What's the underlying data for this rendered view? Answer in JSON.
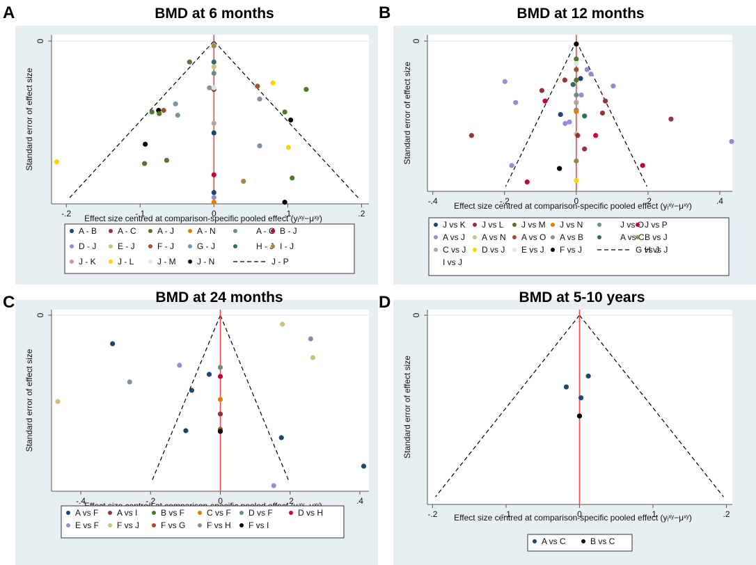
{
  "figure": {
    "x_axis_title": "Effect size centred at comparison-specific pooled effect (yᵢˣʸ−μˣʸ)",
    "y_axis_title": "Standard error of effect size"
  },
  "colors": {
    "panel_background": "#e8eff3",
    "plot_background": "#ffffff",
    "null_line": "#ee4b4b",
    "funnel_line": "#000000",
    "series_palette": {
      "navy": "#1a476f",
      "maroon": "#90353b",
      "green": "#55752f",
      "orange": "#e37e00",
      "teal_grey": "#6e8e84",
      "red": "#c10534",
      "lavender": "#938dd2",
      "khaki": "#cac27e",
      "rust": "#a0522d",
      "steel": "#7b92a8",
      "dark_teal": "#2d6d66",
      "olive": "#9c8847",
      "rose": "#bfa19c",
      "yellow": "#ffd200",
      "pale": "#d9e6eb",
      "black": "#000000"
    }
  },
  "chart_data": [
    {
      "id": "A",
      "type": "scatter",
      "panel_letter": "A",
      "title": "BMD at 6 months",
      "xlabel": "Effect size centred at comparison-specific pooled effect (yᵢˣʸ−μˣʸ)",
      "ylabel": "Standard error of effect size",
      "xlim": [
        -0.22,
        0.21
      ],
      "x_ticks": [
        -0.2,
        -0.1,
        0,
        0.1,
        0.2
      ],
      "x_tick_labels": [
        "-.2",
        "-.1",
        "0",
        ".1",
        ".2"
      ],
      "y_reversed": true,
      "ylim": [
        0,
        0.104
      ],
      "y_ticks": [
        0
      ],
      "y_tick_labels": [
        "0"
      ],
      "funnel": {
        "apex_se": 0,
        "base_se": 0.098,
        "half_width_at_base": 0.197
      },
      "legend_columns": 6,
      "legend": [
        {
          "label": "A - B",
          "color": "#1a476f",
          "marker": "dot"
        },
        {
          "label": "A - C",
          "color": "#90353b",
          "marker": "dot"
        },
        {
          "label": "A - J",
          "color": "#55752f",
          "marker": "dot"
        },
        {
          "label": "A - N",
          "color": "#e37e00",
          "marker": "dot"
        },
        {
          "label": "A - O",
          "color": "#6e8e84",
          "marker": "dot"
        },
        {
          "label": "B - J",
          "color": "#c10534",
          "marker": "dot"
        },
        {
          "label": "D - J",
          "color": "#938dd2",
          "marker": "dot"
        },
        {
          "label": "E - J",
          "color": "#cac27e",
          "marker": "dot"
        },
        {
          "label": "F - J",
          "color": "#a0522d",
          "marker": "dot"
        },
        {
          "label": "G - J",
          "color": "#7b92a8",
          "marker": "dot"
        },
        {
          "label": "H - J",
          "color": "#2d6d66",
          "marker": "dot"
        },
        {
          "label": "I - J",
          "color": "#9c8847",
          "marker": "dot"
        },
        {
          "label": "J - K",
          "color": "#bfa19c",
          "marker": "dot"
        },
        {
          "label": "J - L",
          "color": "#ffd200",
          "marker": "dot"
        },
        {
          "label": "J - M",
          "color": "#d9e6eb",
          "marker": "dot"
        },
        {
          "label": "J - N",
          "color": "#000000",
          "marker": "dot"
        },
        {
          "label": "J - P",
          "color": "#000000",
          "marker": "dash"
        }
      ],
      "points": [
        {
          "series": "I - J",
          "x": 0.0,
          "se": 0.003
        },
        {
          "series": "A - J",
          "x": -0.033,
          "se": 0.013
        },
        {
          "series": "H - J",
          "x": 0.0,
          "se": 0.013
        },
        {
          "series": "E - J",
          "x": 0.0,
          "se": 0.016
        },
        {
          "series": "A - O",
          "x": 0.0,
          "se": 0.02
        },
        {
          "series": "G - J",
          "x": -0.006,
          "se": 0.029
        },
        {
          "series": "A - C",
          "x": 0.0,
          "se": 0.03
        },
        {
          "series": "J - M",
          "x": 0.0,
          "se": 0.029
        },
        {
          "series": "F - J",
          "x": 0.059,
          "se": 0.028
        },
        {
          "series": "J - L",
          "x": 0.08,
          "se": 0.026
        },
        {
          "series": "A - J",
          "x": 0.125,
          "se": 0.03
        },
        {
          "series": "G - J",
          "x": 0.062,
          "se": 0.036
        },
        {
          "series": "G - J",
          "x": -0.052,
          "se": 0.039
        },
        {
          "series": "J - N",
          "x": -0.075,
          "se": 0.043
        },
        {
          "series": "F - J",
          "x": -0.068,
          "se": 0.043
        },
        {
          "series": "A - J",
          "x": -0.084,
          "se": 0.044
        },
        {
          "series": "A - J",
          "x": -0.074,
          "se": 0.045
        },
        {
          "series": "G - J",
          "x": -0.049,
          "se": 0.046
        },
        {
          "series": "A - J",
          "x": 0.096,
          "se": 0.044
        },
        {
          "series": "J - N",
          "x": 0.104,
          "se": 0.049
        },
        {
          "series": "J - K",
          "x": 0.0,
          "se": 0.051
        },
        {
          "series": "A - B",
          "x": 0.0,
          "se": 0.057
        },
        {
          "series": "J - N",
          "x": -0.093,
          "se": 0.064
        },
        {
          "series": "G - J",
          "x": 0.062,
          "se": 0.065
        },
        {
          "series": "J - L",
          "x": 0.101,
          "se": 0.066
        },
        {
          "series": "J - L",
          "x": -0.213,
          "se": 0.075
        },
        {
          "series": "A - J",
          "x": -0.094,
          "se": 0.076
        },
        {
          "series": "A - J",
          "x": -0.064,
          "se": 0.074
        },
        {
          "series": "B - J",
          "x": 0.0,
          "se": 0.083
        },
        {
          "series": "I - J",
          "x": 0.04,
          "se": 0.087
        },
        {
          "series": "A - J",
          "x": 0.106,
          "se": 0.085
        },
        {
          "series": "A - B",
          "x": 0.0,
          "se": 0.094
        },
        {
          "series": "D - J",
          "x": 0.0,
          "se": 0.097
        },
        {
          "series": "A - N",
          "x": 0.0,
          "se": 0.1
        },
        {
          "series": "J - N",
          "x": 0.096,
          "se": 0.1
        }
      ]
    },
    {
      "id": "B",
      "type": "scatter",
      "panel_letter": "B",
      "title": "BMD at 12 months",
      "xlabel": "Effect size centred at comparison-specific pooled effect (yᵢˣʸ−μˣʸ)",
      "ylabel": "Standard error of effect size",
      "xlim": [
        -0.415,
        0.435
      ],
      "x_ticks": [
        -0.4,
        -0.2,
        0,
        0.2,
        0.4
      ],
      "x_tick_labels": [
        "-.4",
        "-.2",
        "0",
        ".2",
        ".4"
      ],
      "y_reversed": true,
      "ylim": [
        0,
        0.103
      ],
      "y_ticks": [
        0
      ],
      "y_tick_labels": [
        "0"
      ],
      "funnel": {
        "apex_se": 0,
        "base_se": 0.097,
        "half_width_at_base": 0.197
      },
      "legend_columns": 6,
      "legend": [
        {
          "label": "J vs K",
          "color": "#1a476f",
          "marker": "dot"
        },
        {
          "label": "J vs L",
          "color": "#90353b",
          "marker": "dot"
        },
        {
          "label": "J vs M",
          "color": "#55752f",
          "marker": "dot"
        },
        {
          "label": "J vs N",
          "color": "#e37e00",
          "marker": "dot"
        },
        {
          "label": "J vs O",
          "color": "#6e8e84",
          "marker": "dot"
        },
        {
          "label": "J vs P",
          "color": "#c10534",
          "marker": "dot"
        },
        {
          "label": "A vs J",
          "color": "#938dd2",
          "marker": "dot"
        },
        {
          "label": "A vs N",
          "color": "#cac27e",
          "marker": "dot"
        },
        {
          "label": "A vs O",
          "color": "#a0522d",
          "marker": "dot"
        },
        {
          "label": "A vs B",
          "color": "#7b92a8",
          "marker": "dot"
        },
        {
          "label": "A vs C",
          "color": "#2d6d66",
          "marker": "dot"
        },
        {
          "label": "B vs J",
          "color": "#9c8847",
          "marker": "dot"
        },
        {
          "label": "C vs J",
          "color": "#bfa19c",
          "marker": "dot"
        },
        {
          "label": "D vs J",
          "color": "#ffd200",
          "marker": "dot"
        },
        {
          "label": "E vs J",
          "color": "#d9e6eb",
          "marker": "dot"
        },
        {
          "label": "F vs J",
          "color": "#000000",
          "marker": "dot"
        },
        {
          "label": "G vs J",
          "color": "#000000",
          "marker": "dash"
        },
        {
          "label": "H vs J",
          "color": "#000000",
          "marker": "none"
        },
        {
          "label": "I vs J",
          "color": "#000000",
          "marker": "none"
        }
      ],
      "points": [
        {
          "series": "F vs J",
          "x": 0.0,
          "se": 0.002
        },
        {
          "series": "J vs M",
          "x": 0.0,
          "se": 0.012
        },
        {
          "series": "E vs J",
          "x": 0.0,
          "se": 0.015
        },
        {
          "series": "A vs O",
          "x": 0.0,
          "se": 0.019
        },
        {
          "series": "A vs J",
          "x": 0.03,
          "se": 0.019
        },
        {
          "series": "A vs J",
          "x": 0.041,
          "se": 0.022
        },
        {
          "series": "J vs L",
          "x": -0.032,
          "se": 0.026
        },
        {
          "series": "J vs K",
          "x": 0.012,
          "se": 0.025
        },
        {
          "series": "J vs M",
          "x": 0.0,
          "se": 0.026
        },
        {
          "series": "A vs J",
          "x": -0.199,
          "se": 0.027
        },
        {
          "series": "A vs C",
          "x": -0.009,
          "se": 0.029
        },
        {
          "series": "A vs J",
          "x": 0.103,
          "se": 0.03
        },
        {
          "series": "J vs L",
          "x": -0.096,
          "se": 0.033
        },
        {
          "series": "J vs O",
          "x": 0.0,
          "se": 0.036
        },
        {
          "series": "A vs J",
          "x": 0.014,
          "se": 0.036
        },
        {
          "series": "J vs P",
          "x": -0.087,
          "se": 0.04
        },
        {
          "series": "J vs L",
          "x": 0.081,
          "se": 0.04
        },
        {
          "series": "A vs J",
          "x": -0.169,
          "se": 0.041
        },
        {
          "series": "C vs J",
          "x": 0.0,
          "se": 0.041
        },
        {
          "series": "A vs B",
          "x": 0.0,
          "se": 0.046
        },
        {
          "series": "J vs N",
          "x": 0.0,
          "se": 0.047
        },
        {
          "series": "J vs K",
          "x": -0.044,
          "se": 0.049
        },
        {
          "series": "J vs L",
          "x": 0.073,
          "se": 0.048
        },
        {
          "series": "A vs C",
          "x": 0.023,
          "se": 0.05
        },
        {
          "series": "J vs L",
          "x": 0.264,
          "se": 0.052
        },
        {
          "series": "A vs J",
          "x": -0.031,
          "se": 0.055
        },
        {
          "series": "A vs J",
          "x": -0.019,
          "se": 0.054
        },
        {
          "series": "A vs N",
          "x": 0.0,
          "se": 0.062
        },
        {
          "series": "J vs L",
          "x": 0.004,
          "se": 0.063
        },
        {
          "series": "J vs L",
          "x": -0.292,
          "se": 0.063
        },
        {
          "series": "J vs P",
          "x": 0.054,
          "se": 0.063
        },
        {
          "series": "A vs J",
          "x": 0.433,
          "se": 0.067
        },
        {
          "series": "J vs L",
          "x": 0.023,
          "se": 0.072
        },
        {
          "series": "B vs J",
          "x": 0.0,
          "se": 0.08
        },
        {
          "series": "A vs J",
          "x": -0.18,
          "se": 0.083
        },
        {
          "series": "J vs P",
          "x": 0.185,
          "se": 0.083
        },
        {
          "series": "F vs J",
          "x": -0.047,
          "se": 0.085
        },
        {
          "series": "J vs P",
          "x": -0.137,
          "se": 0.094
        },
        {
          "series": "D vs J",
          "x": 0.0,
          "se": 0.093
        }
      ]
    },
    {
      "id": "C",
      "type": "scatter",
      "panel_letter": "C",
      "title": "BMD at 24 months",
      "xlabel": "Effect size centred at comparison-specific pooled effect (yᵢˣʸ−μˣʸ)",
      "ylabel": "Standard error of effect size",
      "xlim": [
        -0.484,
        0.426
      ],
      "x_ticks": [
        -0.4,
        -0.2,
        0,
        0.2,
        0.4
      ],
      "x_tick_labels": [
        "-.4",
        "-.2",
        "0",
        ".2",
        ".4"
      ],
      "y_reversed": true,
      "ylim": [
        0,
        0.255
      ],
      "y_ticks": [
        0
      ],
      "y_tick_labels": [
        "0"
      ],
      "funnel": {
        "apex_se": 0,
        "base_se": 0.238,
        "half_width_at_base": 0.196
      },
      "legend_columns": 6,
      "legend": [
        {
          "label": "A vs F",
          "color": "#1a476f",
          "marker": "dot"
        },
        {
          "label": "A vs I",
          "color": "#90353b",
          "marker": "dot"
        },
        {
          "label": "B vs F",
          "color": "#55752f",
          "marker": "dot"
        },
        {
          "label": "C vs F",
          "color": "#e37e00",
          "marker": "dot"
        },
        {
          "label": "D vs F",
          "color": "#6e8e84",
          "marker": "dot"
        },
        {
          "label": "D vs H",
          "color": "#c10534",
          "marker": "dot"
        },
        {
          "label": "E vs F",
          "color": "#938dd2",
          "marker": "dot"
        },
        {
          "label": "F vs J",
          "color": "#cac27e",
          "marker": "dot"
        },
        {
          "label": "F vs G",
          "color": "#a0522d",
          "marker": "dot"
        },
        {
          "label": "F vs H",
          "color": "#7b92a8",
          "marker": "dot"
        },
        {
          "label": "F vs I",
          "color": "#000000",
          "marker": "dot"
        }
      ],
      "points": [
        {
          "series": "F vs J",
          "x": 0.178,
          "se": 0.013
        },
        {
          "series": "A vs F",
          "x": -0.309,
          "se": 0.041
        },
        {
          "series": "F vs H",
          "x": 0.259,
          "se": 0.034
        },
        {
          "series": "F vs J",
          "x": 0.265,
          "se": 0.061
        },
        {
          "series": "E vs F",
          "x": -0.117,
          "se": 0.072
        },
        {
          "series": "D vs F",
          "x": 0.0,
          "se": 0.075
        },
        {
          "series": "A vs F",
          "x": -0.032,
          "se": 0.085
        },
        {
          "series": "D vs H",
          "x": 0.0,
          "se": 0.088
        },
        {
          "series": "F vs H",
          "x": -0.26,
          "se": 0.096
        },
        {
          "series": "A vs F",
          "x": -0.082,
          "se": 0.108
        },
        {
          "series": "F vs J",
          "x": -0.466,
          "se": 0.124
        },
        {
          "series": "C vs F",
          "x": 0.0,
          "se": 0.121
        },
        {
          "series": "A vs I",
          "x": 0.0,
          "se": 0.142
        },
        {
          "series": "B vs F",
          "x": 0.0,
          "se": 0.164
        },
        {
          "series": "F vs G",
          "x": 0.0,
          "se": 0.165
        },
        {
          "series": "F vs I",
          "x": 0.0,
          "se": 0.167
        },
        {
          "series": "A vs F",
          "x": -0.099,
          "se": 0.166
        },
        {
          "series": "A vs F",
          "x": 0.175,
          "se": 0.176
        },
        {
          "series": "A vs F",
          "x": 0.411,
          "se": 0.217
        },
        {
          "series": "E vs F",
          "x": 0.153,
          "se": 0.245
        }
      ]
    },
    {
      "id": "D",
      "type": "scatter",
      "panel_letter": "D",
      "title": "BMD at 5-10 years",
      "xlabel": "Effect size centred at comparison-specific pooled effect (yᵢˣʸ−μˣʸ)",
      "ylabel": "Standard error of effect size",
      "xlim": [
        -0.207,
        0.208
      ],
      "x_ticks": [
        -0.2,
        -0.1,
        0,
        0.1,
        0.2
      ],
      "x_tick_labels": [
        "-.2",
        "-.1",
        "0",
        ".1",
        ".2"
      ],
      "y_reversed": true,
      "ylim": [
        0,
        0.1
      ],
      "y_ticks": [
        0
      ],
      "y_tick_labels": [
        "0"
      ],
      "funnel": {
        "apex_se": 0,
        "base_se": 0.1,
        "half_width_at_base": 0.196
      },
      "legend_columns": 2,
      "legend": [
        {
          "label": "A vs C",
          "color": "#1a476f",
          "marker": "dot"
        },
        {
          "label": "B vs C",
          "color": "#000000",
          "marker": "dot"
        }
      ],
      "points": [
        {
          "series": "A vs C",
          "x": 0.012,
          "se": 0.0335
        },
        {
          "series": "A vs C",
          "x": -0.018,
          "se": 0.0395
        },
        {
          "series": "A vs C",
          "x": 0.002,
          "se": 0.0455
        },
        {
          "series": "B vs C",
          "x": 0.0,
          "se": 0.0555
        }
      ]
    }
  ]
}
